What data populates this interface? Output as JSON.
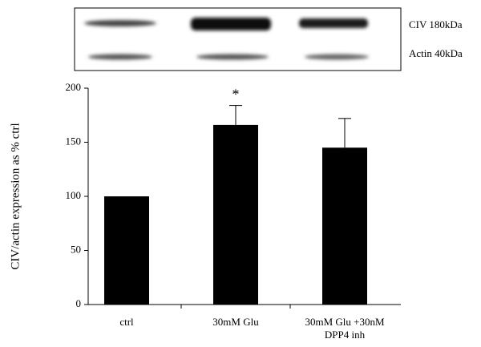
{
  "blot_labels": [
    "CIV 180kDa",
    "Actin 40kDa"
  ],
  "chart_data": {
    "type": "bar",
    "ylabel": "CIV/actin expression as % ctrl",
    "categories": [
      "ctrl",
      "30mM Glu",
      "30mM Glu   +30nM\nDPP4 inh"
    ],
    "values": [
      100,
      166,
      145
    ],
    "errors": [
      null,
      18,
      27
    ],
    "color": "#000000",
    "annotations": [
      {
        "text": "*",
        "category": "30mM Glu"
      }
    ],
    "ylim": [
      0,
      200
    ],
    "yticks": [
      0,
      50,
      100,
      150,
      200
    ],
    "grid": false
  }
}
